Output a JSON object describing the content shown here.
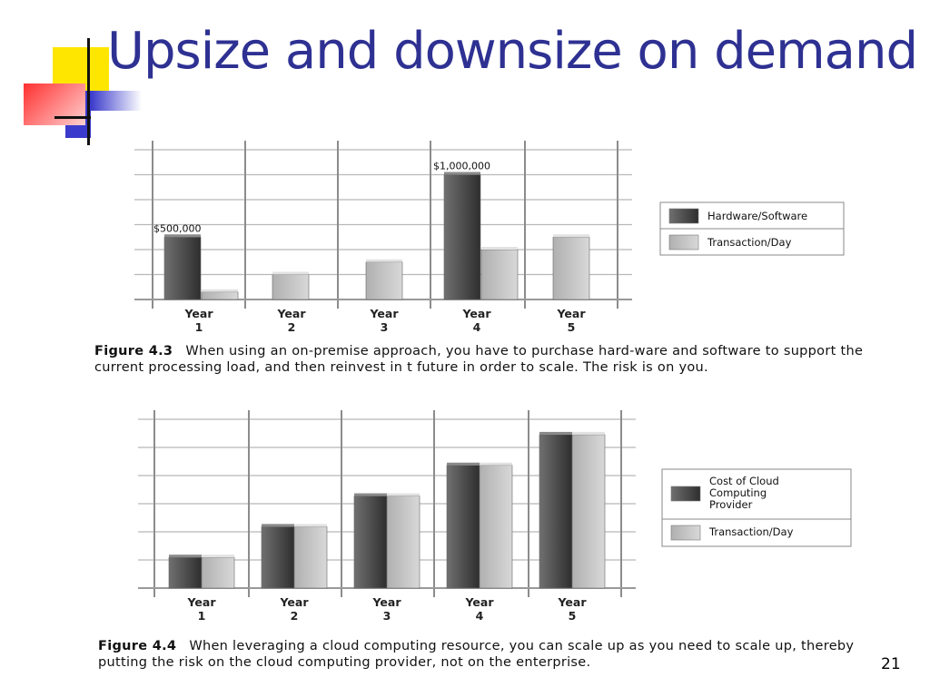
{
  "slide": {
    "title": "Upsize and downsize on demand",
    "page_number": "21"
  },
  "figures": [
    {
      "number": "Figure 4.3",
      "caption": "When using an on-premise approach, you have to purchase hard-ware and software to support the current processing load, and then reinvest in t future in order to scale. The risk is on you."
    },
    {
      "number": "Figure 4.4",
      "caption": "When leveraging a cloud computing resource, you can scale up as you need to scale up, thereby putting the risk on the cloud computing provider, not on the enterprise."
    }
  ],
  "chart_data": [
    {
      "type": "bar",
      "categories": [
        [
          "Year",
          "1"
        ],
        [
          "Year",
          "2"
        ],
        [
          "Year",
          "3"
        ],
        [
          "Year",
          "4"
        ],
        [
          "Year",
          "5"
        ]
      ],
      "series": [
        {
          "name": "Hardware/Software",
          "values": [
            500000,
            null,
            null,
            1000000,
            null
          ],
          "color": "#4a4a4a"
        },
        {
          "name": "Transaction/Day",
          "values": [
            60000,
            200000,
            300000,
            400000,
            500000
          ],
          "color": "#c4c4c4"
        }
      ],
      "data_labels": [
        "$500,000",
        "",
        "",
        "$1,000,000",
        ""
      ],
      "ylim": [
        0,
        1200000
      ],
      "grid": true,
      "legend_position": "right"
    },
    {
      "type": "bar",
      "categories": [
        [
          "Year",
          "1"
        ],
        [
          "Year",
          "2"
        ],
        [
          "Year",
          "3"
        ],
        [
          "Year",
          "4"
        ],
        [
          "Year",
          "5"
        ]
      ],
      "series": [
        {
          "name": "Cost of Cloud Computing Provider",
          "values": [
            1,
            2,
            3,
            4,
            5
          ],
          "color": "#4a4a4a"
        },
        {
          "name": "Transaction/Day",
          "values": [
            1,
            2,
            3,
            4,
            5
          ],
          "color": "#c4c4c4"
        }
      ],
      "ylim": [
        0,
        5.5
      ],
      "grid": true,
      "legend_position": "right"
    }
  ]
}
